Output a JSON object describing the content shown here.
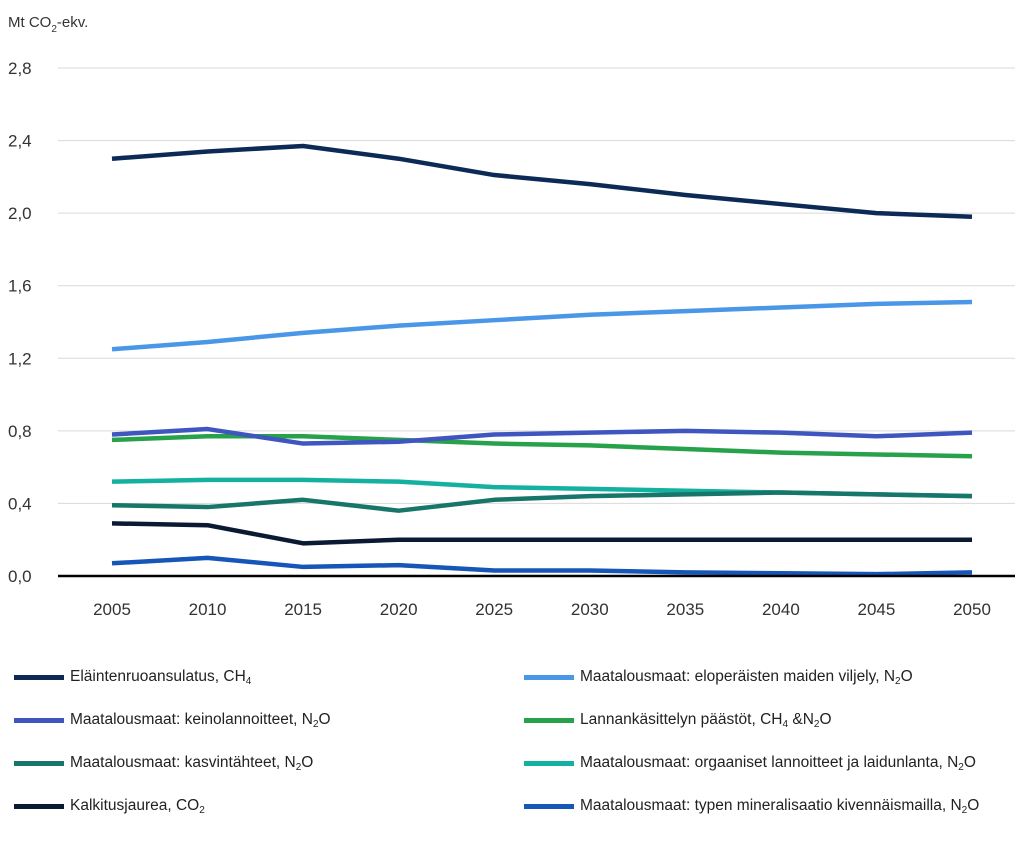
{
  "chart_data": {
    "type": "line",
    "unit_label": "Mt CO₂-ekv.",
    "unit_parts": {
      "pre": "Mt CO",
      "sub": "2",
      "post": "-ekv."
    },
    "x": [
      "2005",
      "2010",
      "2015",
      "2020",
      "2025",
      "2030",
      "2035",
      "2040",
      "2045",
      "2050"
    ],
    "yticks": [
      "0,0",
      "0,4",
      "0,8",
      "1,2",
      "1,6",
      "2,0",
      "2,4",
      "2,8"
    ],
    "ylim": [
      0,
      2.8
    ],
    "grid": true,
    "legend_position": "bottom",
    "series": [
      {
        "name": "Eläintenruoansulatus, CH4",
        "label": {
          "text": "Eläintenruoansulatus, CH",
          "sub": "4",
          "tail": ""
        },
        "color": "#0d2a56",
        "values": [
          2.3,
          2.34,
          2.37,
          2.3,
          2.21,
          2.16,
          2.1,
          2.05,
          2.0,
          1.98
        ]
      },
      {
        "name": "Maatalousmaat: eloperäisten maiden viljely, N2O",
        "label": {
          "text": "Maatalousmaat: eloperäisten maiden viljely, N",
          "sub": "2",
          "tail": "O"
        },
        "color": "#4a97e8",
        "values": [
          1.25,
          1.29,
          1.34,
          1.38,
          1.41,
          1.44,
          1.46,
          1.48,
          1.5,
          1.51
        ]
      },
      {
        "name": "Maatalousmaat: keinolannoitteet, N2O",
        "label": {
          "text": "Maatalousmaat: keinolannoitteet, N",
          "sub": "2",
          "tail": "O"
        },
        "color": "#3f56c0",
        "values": [
          0.78,
          0.81,
          0.73,
          0.74,
          0.78,
          0.79,
          0.8,
          0.79,
          0.77,
          0.79
        ]
      },
      {
        "name": "Lannankäsittelyn päästöt, CH4 & N2O",
        "label": {
          "text": "Lannankäsittelyn päästöt, CH",
          "sub": "4",
          "tail": " &N",
          "sub2": "2",
          "tail2": "O"
        },
        "color": "#27a14a",
        "values": [
          0.75,
          0.77,
          0.77,
          0.75,
          0.73,
          0.72,
          0.7,
          0.68,
          0.67,
          0.66
        ]
      },
      {
        "name": "Maatalousmaat: kasvintähteet, N2O",
        "label": {
          "text": "Maatalousmaat: kasvintähteet, N",
          "sub": "2",
          "tail": "O"
        },
        "color": "#17756a",
        "values": [
          0.39,
          0.38,
          0.42,
          0.36,
          0.42,
          0.44,
          0.45,
          0.46,
          0.45,
          0.44
        ]
      },
      {
        "name": "Maatalousmaat: orgaaniset lannoitteet ja laidunlanta, N2O",
        "label": {
          "text": "Maatalousmaat: orgaaniset lannoitteet ja laidunlanta, N",
          "sub": "2",
          "tail": "O"
        },
        "color": "#14b0a0",
        "values": [
          0.52,
          0.53,
          0.53,
          0.52,
          0.49,
          0.48,
          0.47,
          0.46,
          0.45,
          0.44
        ]
      },
      {
        "name": "Kalkitus ja urea, CO2",
        "label": {
          "text": "Kalkitusjaurea, CO",
          "sub": "2",
          "tail": ""
        },
        "color": "#0a1a33",
        "values": [
          0.29,
          0.28,
          0.18,
          0.2,
          0.2,
          0.2,
          0.2,
          0.2,
          0.2,
          0.2
        ]
      },
      {
        "name": "Maatalousmaat: typen mineralisaatio kivennäismailla, N2O",
        "label": {
          "text": "Maatalousmaat: typen mineralisaatio kivennäismailla, N",
          "sub": "2",
          "tail": "O"
        },
        "color": "#1656b8",
        "values": [
          0.07,
          0.1,
          0.05,
          0.06,
          0.03,
          0.03,
          0.02,
          0.015,
          0.01,
          0.02
        ]
      }
    ]
  }
}
